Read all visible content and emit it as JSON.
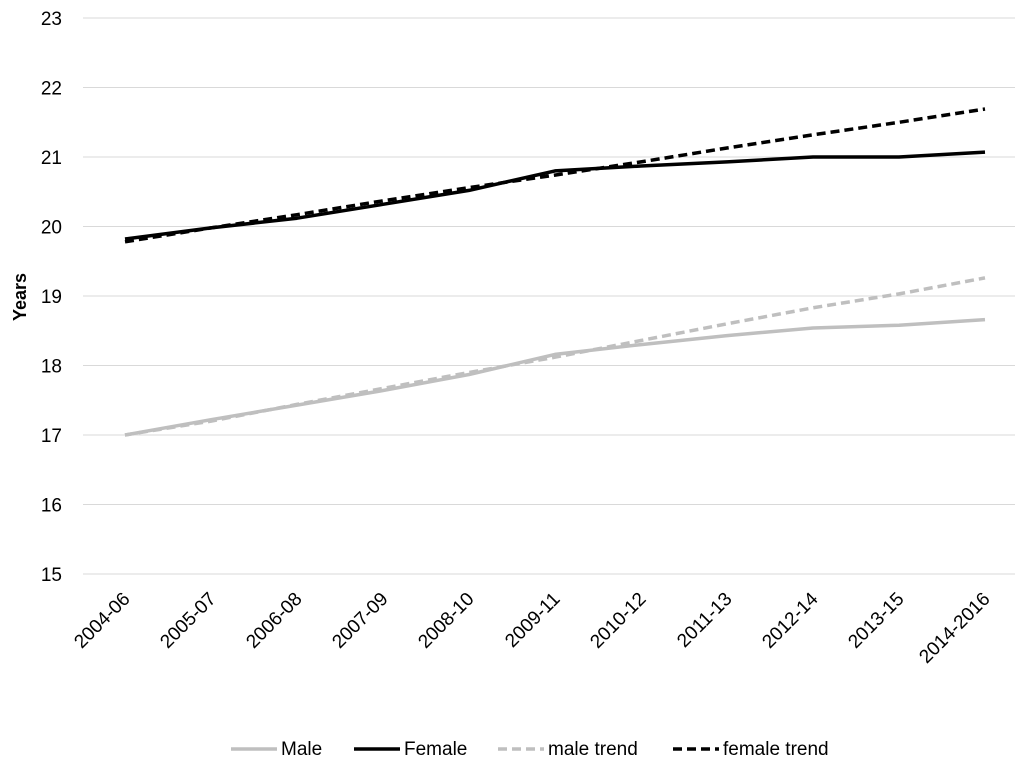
{
  "chart_data": {
    "type": "line",
    "title": "",
    "xlabel": "",
    "ylabel": "Years",
    "ylim": [
      15,
      23
    ],
    "yticks": [
      "15",
      "16",
      "17",
      "18",
      "19",
      "20",
      "21",
      "22",
      "23"
    ],
    "grid": "horizontal",
    "legend_position": "bottom",
    "categories": [
      "2004-06",
      "2005-07",
      "2006-08",
      "2007-09",
      "2008-10",
      "2009-11",
      "2010-12",
      "2011-13",
      "2012-14",
      "2013-15",
      "2014-2016"
    ],
    "series": [
      {
        "name": "Male",
        "color": "#bfbfbf",
        "dash": "solid",
        "values": [
          17.0,
          17.22,
          17.43,
          17.64,
          17.87,
          18.16,
          18.3,
          18.43,
          18.54,
          18.58,
          18.66
        ]
      },
      {
        "name": "Female",
        "color": "#000000",
        "dash": "solid",
        "values": [
          19.82,
          19.98,
          20.12,
          20.32,
          20.52,
          20.8,
          20.87,
          20.93,
          21.0,
          21.0,
          21.07
        ]
      },
      {
        "name": "male trend",
        "color": "#bfbfbf",
        "dash": "dashed",
        "values": [
          17.0,
          17.2,
          17.44,
          17.67,
          17.9,
          18.12,
          18.36,
          18.6,
          18.83,
          19.03,
          19.26
        ]
      },
      {
        "name": "female trend",
        "color": "#000000",
        "dash": "dashed",
        "values": [
          19.78,
          19.98,
          20.17,
          20.37,
          20.56,
          20.74,
          20.93,
          21.13,
          21.32,
          21.5,
          21.69
        ]
      }
    ]
  }
}
